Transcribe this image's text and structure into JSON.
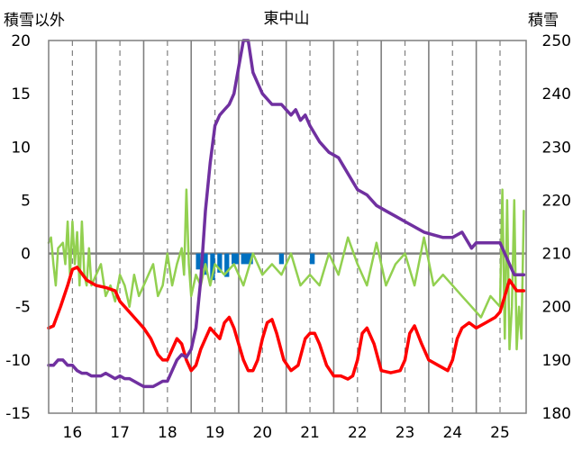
{
  "chart_data": {
    "type": "line",
    "title": "東中山",
    "left_axis": {
      "label": "積雪以外",
      "ylim": [
        -15,
        20
      ],
      "ticks": [
        20,
        15,
        10,
        5,
        0,
        -5,
        -10,
        -15
      ]
    },
    "right_axis": {
      "label": "積雪",
      "ylim": [
        180,
        250
      ],
      "ticks": [
        250,
        240,
        230,
        220,
        210,
        200,
        190,
        180
      ]
    },
    "x_axis": {
      "xlim": [
        15.5,
        25.55
      ],
      "ticks": [
        16,
        17,
        18,
        19,
        20,
        21,
        22,
        23,
        24,
        25
      ],
      "tick_labels": [
        "16",
        "17",
        "18",
        "19",
        "20",
        "21",
        "22",
        "23",
        "24",
        "25"
      ],
      "day_boundaries": [
        16.5,
        17.5,
        18.5,
        19.5,
        20.5,
        21.5,
        22.5,
        23.5,
        24.5
      ],
      "grid": "dashed-vertical-at-day-centers"
    },
    "colors": {
      "temperature": "#ff0000",
      "precipitation_diff": "#92d050",
      "snow_depth": "#7030a0",
      "snowfall_bars": "#0070c0",
      "zero_line": "#808080",
      "grid": "#7f7f7f",
      "frame": "#7f7f7f"
    },
    "series": [
      {
        "key": "temperature",
        "axis": "left",
        "x": [
          15.5,
          15.6,
          15.75,
          15.9,
          16.0,
          16.1,
          16.3,
          16.5,
          16.7,
          16.9,
          17.0,
          17.1,
          17.3,
          17.5,
          17.65,
          17.8,
          17.9,
          18.0,
          18.1,
          18.2,
          18.3,
          18.4,
          18.5,
          18.6,
          18.7,
          18.8,
          18.9,
          19.0,
          19.1,
          19.2,
          19.3,
          19.4,
          19.5,
          19.6,
          19.7,
          19.8,
          19.9,
          20.0,
          20.1,
          20.2,
          20.3,
          20.45,
          20.6,
          20.75,
          20.9,
          21.0,
          21.1,
          21.2,
          21.35,
          21.5,
          21.65,
          21.8,
          21.9,
          22.0,
          22.1,
          22.2,
          22.35,
          22.5,
          22.7,
          22.9,
          23.0,
          23.1,
          23.2,
          23.35,
          23.5,
          23.7,
          23.9,
          24.0,
          24.1,
          24.2,
          24.35,
          24.5,
          24.7,
          24.9,
          25.0,
          25.1,
          25.2,
          25.35,
          25.5
        ],
        "values": [
          -7,
          -6.8,
          -5,
          -3,
          -1.5,
          -1.3,
          -2.5,
          -3.0,
          -3.2,
          -3.5,
          -4.5,
          -5,
          -6,
          -7,
          -8,
          -9.5,
          -10,
          -10,
          -9,
          -8,
          -8.5,
          -10,
          -11,
          -10.5,
          -9,
          -8,
          -7,
          -7.5,
          -8,
          -6.5,
          -6,
          -7,
          -8.5,
          -10,
          -11,
          -11,
          -10,
          -8,
          -6.5,
          -6.2,
          -7.5,
          -10,
          -11,
          -10.5,
          -8,
          -7.5,
          -7.5,
          -8.5,
          -10.5,
          -11.5,
          -11.5,
          -11.8,
          -11.5,
          -10,
          -7.5,
          -7,
          -8.5,
          -11,
          -11.2,
          -11,
          -10,
          -7.5,
          -6.8,
          -8.5,
          -10,
          -10.5,
          -11,
          -10,
          -8,
          -7,
          -6.5,
          -7,
          -6.5,
          -6,
          -5.5,
          -4,
          -2.5,
          -3.5,
          -3.5
        ]
      },
      {
        "key": "precipitation_diff",
        "axis": "left",
        "x": [
          15.5,
          15.55,
          15.6,
          15.65,
          15.7,
          15.8,
          15.85,
          15.9,
          15.95,
          16.0,
          16.05,
          16.1,
          16.15,
          16.2,
          16.25,
          16.3,
          16.35,
          16.4,
          16.5,
          16.6,
          16.7,
          16.8,
          16.9,
          17.0,
          17.1,
          17.2,
          17.3,
          17.4,
          17.5,
          17.6,
          17.7,
          17.8,
          17.9,
          18.0,
          18.1,
          18.2,
          18.3,
          18.35,
          18.4,
          18.45,
          18.5,
          18.6,
          18.7,
          18.8,
          18.9,
          19.0,
          19.2,
          19.4,
          19.6,
          19.8,
          20.0,
          20.2,
          20.4,
          20.6,
          20.8,
          21.0,
          21.2,
          21.4,
          21.6,
          21.8,
          22.0,
          22.2,
          22.4,
          22.6,
          22.8,
          23.0,
          23.2,
          23.4,
          23.6,
          23.8,
          24.0,
          24.2,
          24.4,
          24.6,
          24.8,
          25.0,
          25.05,
          25.1,
          25.15,
          25.2,
          25.25,
          25.3,
          25.35,
          25.4,
          25.45,
          25.5
        ],
        "values": [
          1,
          1.5,
          -1,
          -3,
          0.5,
          1,
          -1,
          3,
          -2,
          3,
          -1,
          2,
          -3,
          3,
          -2,
          -3,
          0.5,
          -3,
          -2,
          -1,
          -4,
          -3,
          -4.5,
          -2,
          -3,
          -5,
          -2,
          -4,
          -3,
          -2,
          -1,
          -4,
          -3,
          0,
          -3,
          -1,
          0.5,
          -2,
          6,
          -1,
          -4,
          -2,
          -3,
          -1,
          -3,
          -1,
          -2,
          -1,
          -3,
          0,
          -2,
          -1,
          -2,
          0,
          -3,
          -2,
          -3,
          0,
          -2,
          1.5,
          -1,
          -3,
          1,
          -3,
          -1,
          0,
          -3,
          1.5,
          -3,
          -2,
          -3,
          -4,
          -5,
          -6,
          -4,
          -5,
          6,
          -8,
          5,
          -9,
          -5,
          5,
          -9,
          -5,
          -8,
          4
        ]
      },
      {
        "key": "snow_depth",
        "axis": "right",
        "x": [
          15.5,
          15.6,
          15.7,
          15.8,
          15.9,
          16.0,
          16.1,
          16.2,
          16.3,
          16.4,
          16.5,
          16.6,
          16.7,
          16.8,
          16.9,
          17.0,
          17.1,
          17.2,
          17.3,
          17.4,
          17.5,
          17.6,
          17.7,
          17.8,
          17.9,
          18.0,
          18.1,
          18.2,
          18.3,
          18.4,
          18.5,
          18.6,
          18.7,
          18.8,
          18.9,
          19.0,
          19.1,
          19.2,
          19.3,
          19.4,
          19.5,
          19.6,
          19.7,
          19.8,
          19.9,
          20.0,
          20.2,
          20.4,
          20.5,
          20.6,
          20.7,
          20.8,
          20.9,
          21.0,
          21.2,
          21.4,
          21.6,
          21.8,
          22.0,
          22.2,
          22.4,
          22.6,
          22.8,
          23.0,
          23.2,
          23.4,
          23.6,
          23.8,
          24.0,
          24.2,
          24.4,
          24.5,
          24.6,
          24.8,
          25.0,
          25.2,
          25.3,
          25.4,
          25.5
        ],
        "values": [
          189,
          189,
          190,
          190,
          189,
          189,
          188,
          187.5,
          187.5,
          187,
          187,
          187,
          187.5,
          187,
          186.5,
          187,
          186.5,
          186.5,
          186,
          185.5,
          185,
          185,
          185,
          185.5,
          186,
          186,
          188,
          190,
          191,
          190.5,
          192,
          196,
          205,
          218,
          227,
          234,
          236,
          237,
          238,
          240,
          245,
          250,
          250,
          244,
          242,
          240,
          238,
          238,
          237,
          236,
          237,
          235,
          236,
          234,
          231,
          229,
          228,
          225,
          222,
          221,
          219,
          218,
          217,
          216,
          215,
          214,
          213.5,
          213,
          213,
          214,
          211,
          212,
          212,
          212,
          212,
          208,
          206,
          206,
          206
        ]
      }
    ],
    "snowfall_bars": {
      "axis": "left",
      "x_start": [
        18.6,
        18.75,
        18.9,
        19.05,
        19.2,
        19.35,
        19.55,
        20.35,
        21.0
      ],
      "x_end": [
        18.7,
        18.85,
        19.0,
        19.15,
        19.3,
        19.5,
        19.8,
        20.45,
        21.1
      ],
      "values": [
        -1.5,
        -2.0,
        -2.5,
        -1.8,
        -2.2,
        -1.0,
        -1.0,
        -1.0,
        -1.0
      ]
    }
  }
}
